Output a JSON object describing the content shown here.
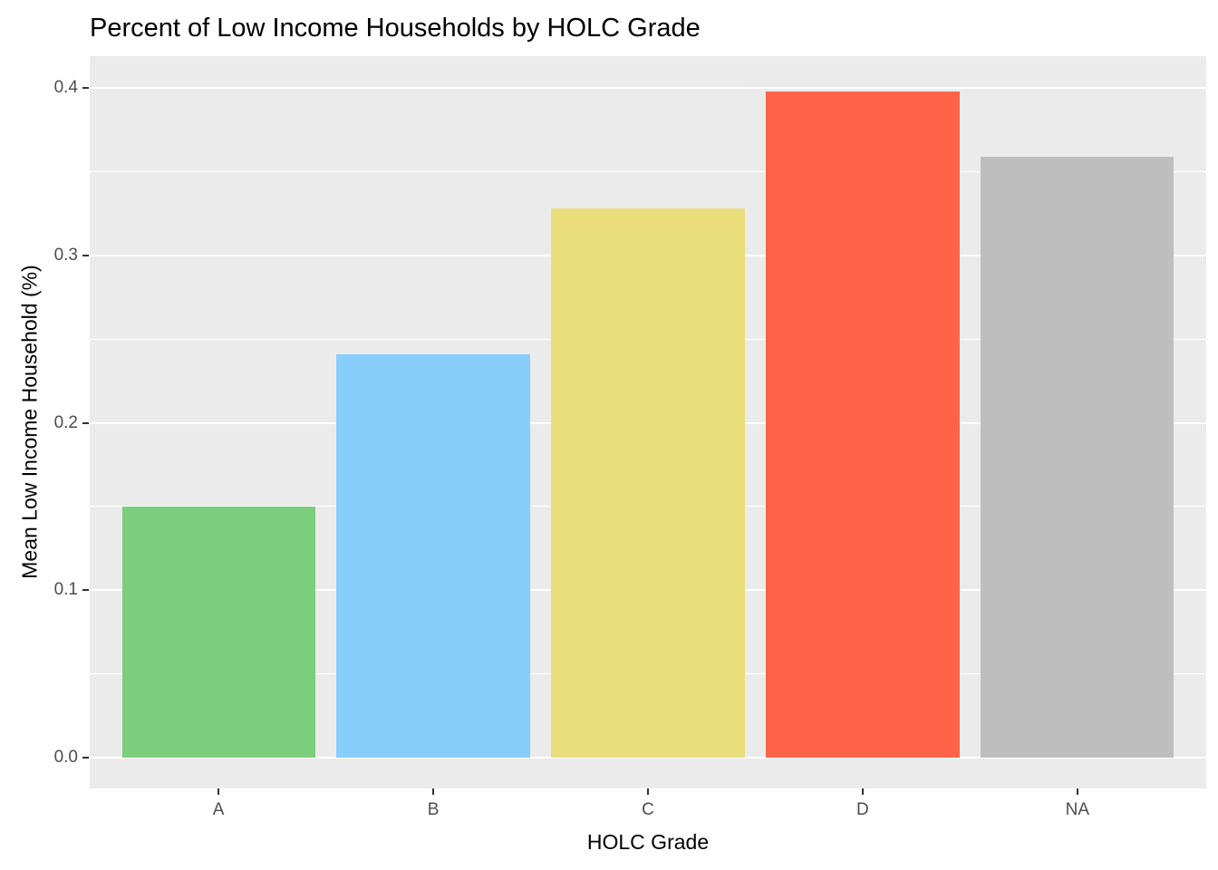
{
  "chart_data": {
    "type": "bar",
    "title": "Percent of Low Income Households by HOLC Grade",
    "xlabel": "HOLC Grade",
    "ylabel": "Mean Low Income Household (%)",
    "categories": [
      "A",
      "B",
      "C",
      "D",
      "NA"
    ],
    "values": [
      0.15,
      0.241,
      0.328,
      0.398,
      0.359
    ],
    "bar_colors": [
      "#7CCD7C",
      "#87CEFA",
      "#EADD7C",
      "#FF6347",
      "#BEBEBE"
    ],
    "y_ticks": [
      0.0,
      0.1,
      0.2,
      0.3,
      0.4
    ],
    "y_tick_labels": [
      "0.0",
      "0.1",
      "0.2",
      "0.3",
      "0.4"
    ],
    "y_minor_ticks": [
      0.05,
      0.15,
      0.25,
      0.35
    ],
    "ylim": [
      -0.0184,
      0.4191
    ],
    "grid": true,
    "legend": false,
    "colors": {
      "panel_bg": "#EBEBEB",
      "figure_bg": "#FFFFFF",
      "grid_major": "#FFFFFF",
      "grid_minor": "#FFFFFF",
      "tick_label": "#4D4D4D",
      "tick_mark": "#333333",
      "title_text": "#000000"
    }
  }
}
